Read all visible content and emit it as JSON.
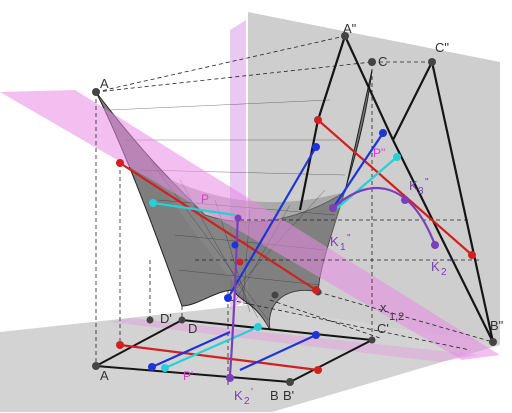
{
  "diagram": {
    "labels": {
      "A_top": "A",
      "A_dd": "A\"",
      "C_top": "C",
      "C_dd": "C\"",
      "P": "P",
      "P_dd": "P\"",
      "K3_dd": "K",
      "K3_dd_sub": "3",
      "K3_dd_sup": "\"",
      "K1_dd": "K",
      "K1_dd_sub": "1",
      "K1_dd_sup": "\"",
      "K2_dd": "K",
      "K2_dd_sub": "2",
      "K2_dd_sup": "\"",
      "D_prime": "D'",
      "D": "D",
      "C_prime": "C'",
      "A_prime": "A",
      "P_prime": "P'",
      "K2_prime": "K",
      "K2_prime_sub": "2",
      "K2_prime_sup": "'",
      "B": "B",
      "B_prime": "B'",
      "B_dd": "B\"",
      "x12": "x",
      "x12_sub": "1,2"
    },
    "colors": {
      "plane": "#bdbdbd",
      "surface": "#6e6e6e",
      "pink_plane": "#e88ae4",
      "red": "#d21f1f",
      "blue": "#1f34d6",
      "cyan": "#27cfd6",
      "violet": "#7b3fb8",
      "edge": "#1a1a1a"
    }
  }
}
